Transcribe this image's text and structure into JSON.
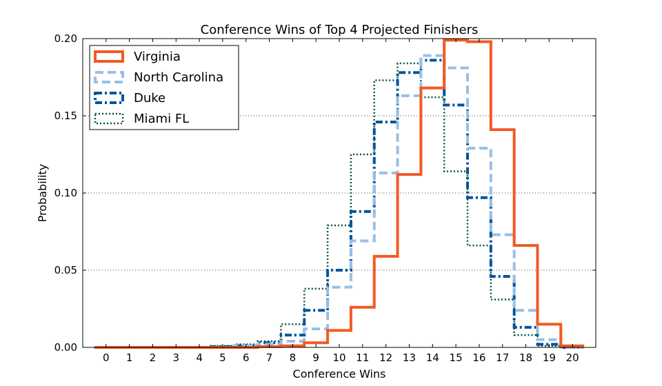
{
  "chart_data": {
    "type": "step",
    "title": "Conference Wins of Top 4 Projected Finishers",
    "xlabel": "Conference Wins",
    "ylabel": "Probability",
    "xlim": [
      -1,
      21
    ],
    "ylim": [
      0,
      0.2
    ],
    "x_ticks": [
      "0",
      "1",
      "2",
      "3",
      "4",
      "5",
      "6",
      "7",
      "8",
      "9",
      "10",
      "11",
      "12",
      "13",
      "14",
      "15",
      "16",
      "17",
      "18",
      "19",
      "20"
    ],
    "y_ticks": [
      "0.00",
      "0.05",
      "0.10",
      "0.15",
      "0.20"
    ],
    "grid": "horizontal dotted",
    "legend_position": "top-left",
    "x": [
      0,
      1,
      2,
      3,
      4,
      5,
      6,
      7,
      8,
      9,
      10,
      11,
      12,
      13,
      14,
      15,
      16,
      17,
      18,
      19,
      20
    ],
    "series": [
      {
        "name": "Virginia",
        "color": "#f15a22",
        "style": "solid",
        "values": [
          0,
          0,
          0,
          0,
          0,
          0,
          0,
          0.0005,
          0.001,
          0.003,
          0.011,
          0.026,
          0.059,
          0.112,
          0.168,
          0.199,
          0.198,
          0.141,
          0.066,
          0.015,
          0.001
        ]
      },
      {
        "name": "North Carolina",
        "color": "#99bfe5",
        "style": "dashed",
        "values": [
          0,
          0,
          0,
          0,
          0,
          0,
          0.001,
          0.002,
          0.004,
          0.012,
          0.039,
          0.069,
          0.113,
          0.163,
          0.189,
          0.181,
          0.129,
          0.073,
          0.024,
          0.005,
          0
        ]
      },
      {
        "name": "Duke",
        "color": "#00539b",
        "style": "dashdot",
        "values": [
          0,
          0,
          0,
          0,
          0,
          0.0005,
          0.001,
          0.003,
          0.008,
          0.024,
          0.05,
          0.088,
          0.146,
          0.178,
          0.186,
          0.157,
          0.097,
          0.046,
          0.013,
          0.002,
          0
        ]
      },
      {
        "name": "Miami FL",
        "color": "#005030",
        "style": "dotted",
        "values": [
          0,
          0,
          0,
          0,
          0,
          0.001,
          0.002,
          0.004,
          0.015,
          0.038,
          0.079,
          0.125,
          0.173,
          0.184,
          0.162,
          0.114,
          0.066,
          0.031,
          0.008,
          0.001,
          0
        ]
      }
    ]
  }
}
